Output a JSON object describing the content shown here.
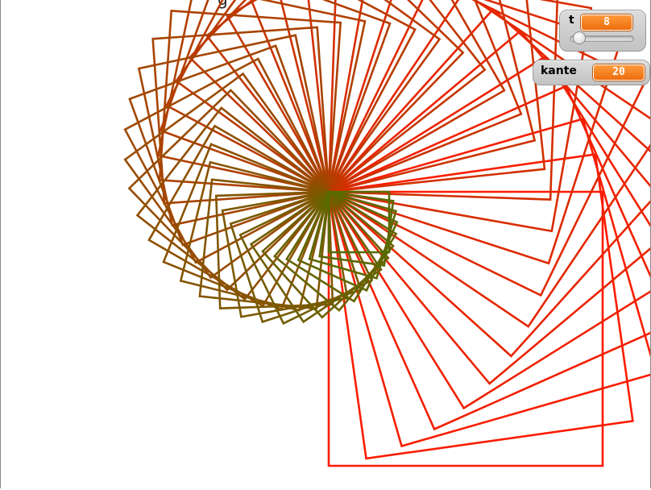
{
  "stage": {
    "title_fragment": "g"
  },
  "monitors": {
    "t": {
      "name": "t",
      "value": "8",
      "slider_level": 0.08
    },
    "kante": {
      "name": "kante",
      "value": "20"
    }
  },
  "pattern": {
    "start_color": "#ff1a00",
    "end_color": "#556b00"
  }
}
